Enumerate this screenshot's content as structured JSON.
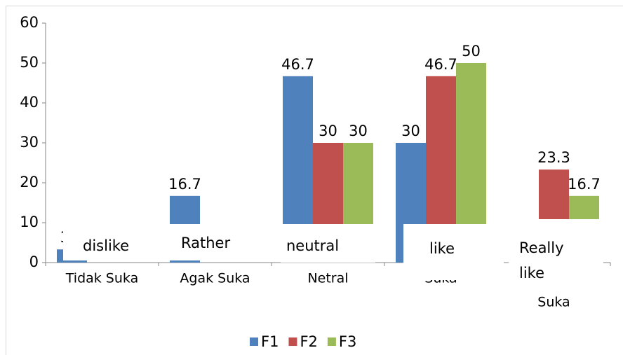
{
  "chart_data": {
    "type": "bar",
    "categories": [
      "Tidak Suka",
      "Agak Suka",
      "Netral",
      "Suka",
      "Suka"
    ],
    "series": [
      {
        "name": "F1",
        "color": "#4f81bd",
        "values": [
          3.3,
          16.7,
          46.7,
          30,
          null
        ]
      },
      {
        "name": "F2",
        "color": "#c0504d",
        "values": [
          null,
          null,
          30,
          46.7,
          23.3
        ]
      },
      {
        "name": "F3",
        "color": "#9bbb59",
        "values": [
          null,
          null,
          30,
          50,
          16.7
        ]
      }
    ],
    "annotations": [
      "dislike",
      "Rather",
      "neutral",
      "like",
      "Really like"
    ],
    "ylim": [
      0,
      60
    ],
    "yticks": [
      0,
      10,
      20,
      30,
      40,
      50,
      60
    ],
    "legend": "bottom"
  }
}
